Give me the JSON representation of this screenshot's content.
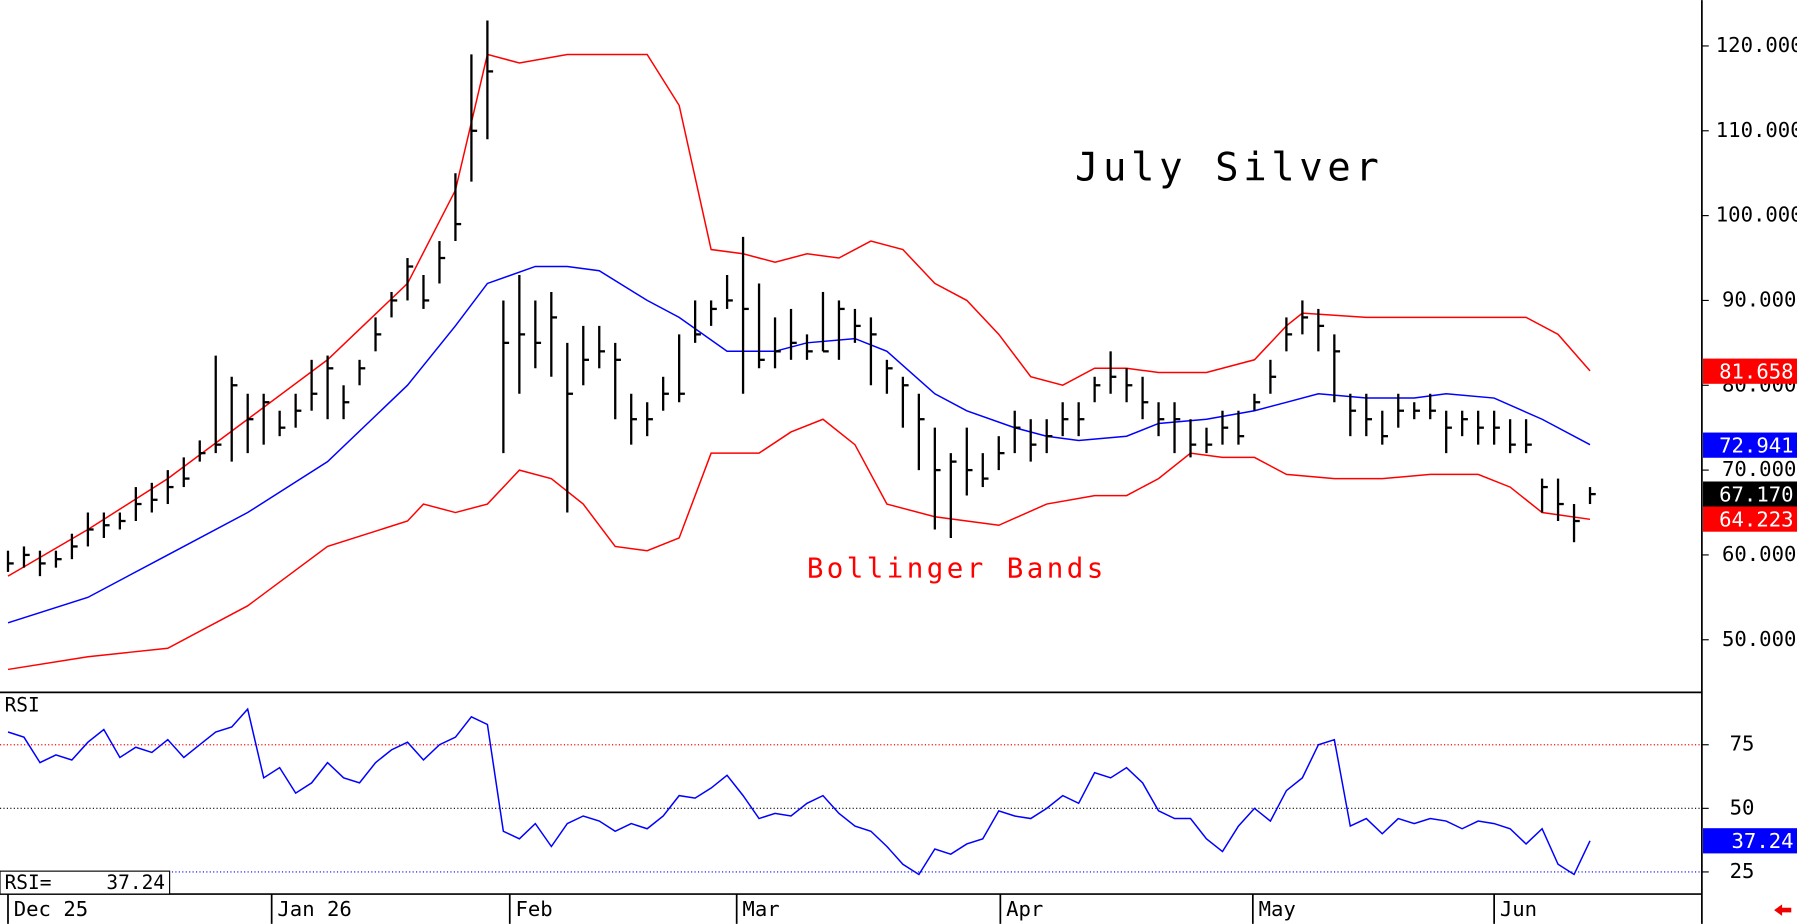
{
  "chart_data": {
    "type": "ohlc",
    "title": "July Silver",
    "annotation": {
      "text": "Bollinger Bands",
      "color": "#ff0000"
    },
    "xlim": [
      -0.5,
      106
    ],
    "xticks": [
      {
        "value": 0,
        "label": "Dec 25"
      },
      {
        "value": 16.5,
        "label": "Jan 26"
      },
      {
        "value": 31.4,
        "label": "Feb"
      },
      {
        "value": 45.6,
        "label": "Mar"
      },
      {
        "value": 62.1,
        "label": "Apr"
      },
      {
        "value": 77.9,
        "label": "May"
      },
      {
        "value": 93,
        "label": "Jun"
      }
    ],
    "ylim": [
      43.8,
      125.4
    ],
    "yticks": [
      {
        "value": 50,
        "label": "50.000"
      },
      {
        "value": 60,
        "label": "60.000"
      },
      {
        "value": 70,
        "label": "70.000"
      },
      {
        "value": 80,
        "label": "80.000"
      },
      {
        "value": 90,
        "label": "90.000"
      },
      {
        "value": 100,
        "label": "100.000"
      },
      {
        "value": 110,
        "label": "110.000"
      },
      {
        "value": 120,
        "label": "120.000"
      }
    ],
    "bars": {
      "color": "#000000",
      "high": [
        60.5,
        61,
        60.5,
        60.5,
        62.5,
        65,
        65,
        65,
        68,
        68.5,
        70,
        71.5,
        73.5,
        83.5,
        81,
        79,
        79,
        77,
        79,
        83,
        83.5,
        80,
        83,
        88,
        91,
        95,
        93,
        97,
        105,
        119,
        123,
        90,
        93,
        90,
        91,
        85,
        87,
        87,
        85,
        79,
        78,
        81,
        86,
        90,
        90,
        93,
        97.5,
        92,
        88,
        89,
        86,
        91,
        90,
        89,
        88,
        83,
        81,
        79,
        75,
        72,
        75,
        72,
        74,
        77,
        76,
        76,
        78,
        78,
        81,
        84,
        82,
        81,
        78,
        78,
        76,
        75,
        77,
        77,
        79,
        83,
        88,
        90,
        89,
        86,
        79,
        79,
        77,
        79,
        78,
        79,
        77,
        77,
        77,
        77,
        76,
        76,
        69,
        69,
        66,
        68
      ],
      "low": [
        58,
        58.5,
        57.5,
        58.5,
        59.5,
        61,
        62,
        63,
        64,
        65,
        66,
        68,
        71,
        72,
        71,
        72,
        73,
        74,
        75,
        77,
        76,
        76,
        80,
        84,
        88,
        90,
        89,
        92,
        97,
        104,
        109,
        72,
        79,
        82,
        81,
        65,
        80,
        82,
        76,
        73,
        74,
        77,
        78,
        85,
        87,
        89,
        79,
        82,
        82,
        83,
        83,
        84,
        83,
        85,
        80,
        79,
        75,
        70,
        63,
        62,
        67,
        68,
        70,
        72,
        71,
        72,
        74,
        74,
        78,
        79,
        78,
        76,
        74,
        72,
        71.5,
        72,
        73,
        73,
        77,
        79,
        84,
        86,
        84,
        78,
        74,
        74,
        73,
        75,
        76,
        76,
        72,
        74,
        73,
        73,
        72,
        72,
        65,
        64,
        61.5,
        66
      ],
      "close": [
        59,
        60,
        59,
        59.5,
        61,
        63,
        63.5,
        64,
        66,
        66.5,
        68,
        69,
        72,
        73,
        80,
        76,
        78,
        75,
        77,
        79,
        82,
        78,
        82,
        86,
        90,
        94,
        90,
        95,
        99,
        110,
        117,
        85,
        86,
        85,
        88,
        79,
        83,
        84,
        83,
        76,
        76,
        79,
        79,
        86,
        89,
        90,
        89,
        83,
        84,
        85,
        84,
        84,
        89,
        87,
        86,
        82,
        80,
        76,
        70,
        71,
        70,
        69,
        72,
        75,
        73,
        74,
        76,
        76,
        80,
        81,
        80,
        78,
        76,
        76,
        73,
        73,
        75,
        74,
        78,
        81,
        86,
        88,
        87,
        84,
        77,
        76,
        74,
        77,
        77,
        77,
        75,
        76,
        75,
        75,
        73,
        73,
        68,
        66,
        64,
        67.17
      ]
    },
    "bands": [
      {
        "color": "#ff0000",
        "x": [
          0,
          5,
          10,
          15,
          20,
          25,
          28,
          30,
          32,
          35,
          40,
          42,
          44,
          46,
          48,
          50,
          52,
          54,
          56,
          58,
          60,
          62,
          64,
          66,
          68,
          70,
          72,
          75,
          78,
          80,
          81,
          85,
          90,
          95,
          97,
          99
        ],
        "values": [
          57.5,
          63,
          69,
          76,
          83,
          92,
          103,
          119,
          118,
          119,
          119,
          113,
          96,
          95.5,
          94.5,
          95.5,
          95,
          97,
          96,
          92,
          90,
          86,
          81,
          80,
          82,
          82,
          81.5,
          81.5,
          83,
          87,
          88.5,
          88,
          88,
          88,
          86,
          81.7
        ]
      },
      {
        "color": "#0000ff",
        "x": [
          0,
          5,
          10,
          15,
          20,
          25,
          28,
          30,
          33,
          35,
          37,
          40,
          42,
          45,
          48,
          50,
          53,
          55,
          58,
          60,
          63,
          65,
          67,
          70,
          72,
          75,
          78,
          80,
          82,
          85,
          88,
          90,
          93,
          96,
          99
        ],
        "values": [
          52,
          55,
          60,
          65,
          71,
          80,
          87,
          92,
          94,
          94,
          93.5,
          90,
          88,
          84,
          84,
          85,
          85.5,
          84,
          79,
          77,
          75,
          74,
          73.5,
          74,
          75.5,
          76,
          77,
          78,
          79,
          78.5,
          78.5,
          79,
          78.5,
          76,
          73
        ]
      },
      {
        "color": "#ff0000",
        "x": [
          0,
          5,
          10,
          15,
          20,
          25,
          26,
          28,
          30,
          32,
          34,
          36,
          38,
          40,
          42,
          44,
          47,
          49,
          51,
          53,
          55,
          58,
          60,
          62,
          65,
          68,
          70,
          72,
          74,
          76,
          78,
          80,
          83,
          86,
          89,
          92,
          94,
          96,
          99
        ],
        "values": [
          46.5,
          48,
          49,
          54,
          61,
          64,
          66,
          65,
          66,
          70,
          69,
          66,
          61,
          60.5,
          62,
          72,
          72,
          74.5,
          76,
          73,
          66,
          64.5,
          64,
          63.5,
          66,
          67,
          67,
          69,
          72,
          71.5,
          71.5,
          69.5,
          69,
          69,
          69.5,
          69.5,
          68,
          65,
          64.2
        ]
      }
    ],
    "last_labels": [
      {
        "value": 81.658,
        "label": "81.658",
        "color": "#ff0000"
      },
      {
        "value": 72.941,
        "label": "72.941",
        "color": "#0000ff"
      },
      {
        "value": 67.17,
        "label": "67.170",
        "color": "#000000"
      },
      {
        "value": 64.223,
        "label": "64.223",
        "color": "#ff0000"
      }
    ],
    "rsi": {
      "type": "line",
      "name": "RSI",
      "color": "#0000ff",
      "readout_label": "RSI=",
      "ylim": [
        16.3,
        95.6
      ],
      "yticks": [
        25,
        50,
        75
      ],
      "levels": [
        {
          "value": 75,
          "color": "#ff0000"
        },
        {
          "value": 50,
          "color": "#000000"
        },
        {
          "value": 25,
          "color": "#0000ff"
        }
      ],
      "values": [
        80,
        78,
        68,
        71,
        69,
        76,
        81,
        70,
        74,
        72,
        77,
        70,
        75,
        80,
        82,
        89,
        62,
        66,
        56,
        60,
        68,
        62,
        60,
        68,
        73,
        76,
        69,
        75,
        78,
        86,
        83,
        41,
        38,
        44,
        35,
        44,
        47,
        45,
        41,
        44,
        42,
        47,
        55,
        54,
        58,
        63,
        55,
        46,
        48,
        47,
        52,
        55,
        48,
        43,
        41,
        35,
        28,
        24,
        34,
        32,
        36,
        38,
        49,
        47,
        46,
        50,
        55,
        52,
        64,
        62,
        66,
        60,
        49,
        46,
        46,
        38,
        33,
        43,
        50,
        45,
        57,
        62,
        75,
        77,
        43,
        46,
        40,
        46,
        44,
        46,
        45,
        42,
        45,
        44,
        42,
        36,
        42,
        28,
        24,
        37.24
      ]
    }
  }
}
